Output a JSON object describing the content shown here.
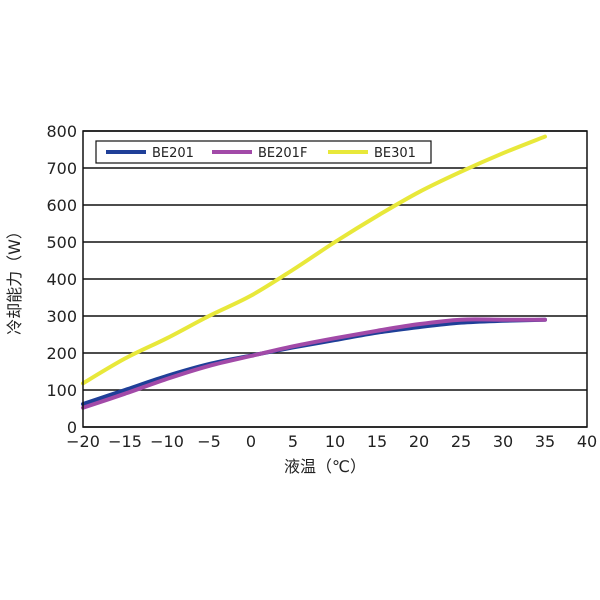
{
  "chart_data": {
    "type": "line",
    "title": "",
    "xlabel": "液温（℃）",
    "ylabel": "冷却能力（W）",
    "xlim": [
      -20,
      40
    ],
    "ylim": [
      0,
      800
    ],
    "xticks": [
      -20,
      -15,
      -10,
      -5,
      0,
      5,
      10,
      15,
      20,
      25,
      30,
      35,
      40
    ],
    "yticks": [
      0,
      100,
      200,
      300,
      400,
      500,
      600,
      700,
      800
    ],
    "grid": "horizontal",
    "legend_position": "top-left",
    "x": [
      -20,
      -15,
      -10,
      -5,
      0,
      5,
      10,
      15,
      20,
      25,
      30,
      35
    ],
    "series": [
      {
        "name": "BE201",
        "color": "#1f3f98",
        "values": [
          62,
          100,
          138,
          170,
          193,
          215,
          235,
          255,
          270,
          282,
          287,
          290
        ]
      },
      {
        "name": "BE201F",
        "color": "#a24aa8",
        "values": [
          52,
          90,
          130,
          165,
          192,
          218,
          240,
          260,
          278,
          290,
          290,
          290
        ]
      },
      {
        "name": "BE301",
        "color": "#e8e83a",
        "values": [
          118,
          185,
          240,
          300,
          355,
          425,
          500,
          570,
          635,
          690,
          740,
          785
        ]
      }
    ]
  }
}
